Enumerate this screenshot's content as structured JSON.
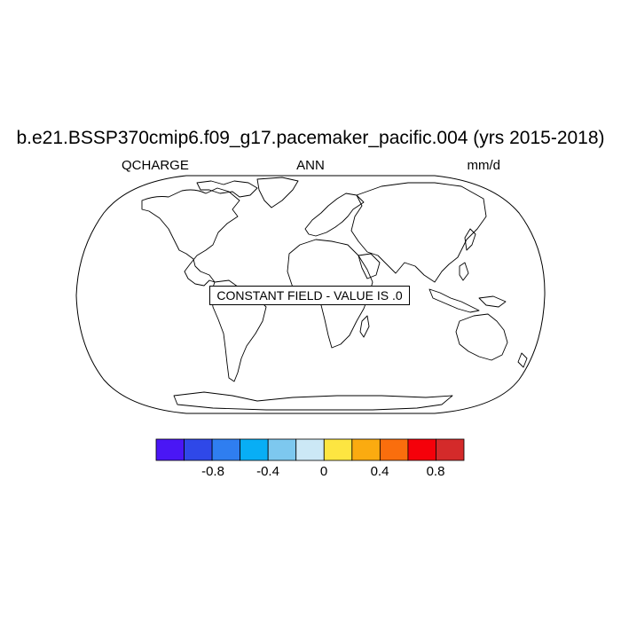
{
  "title": "b.e21.BSSP370cmip6.f09_g17.pacemaker_pacific.004 (yrs 2015-2018)",
  "subtitle": {
    "left": "QCHARGE",
    "center": "ANN",
    "right": "mm/d"
  },
  "map": {
    "projection": "Robinson",
    "annotation": "CONSTANT FIELD - VALUE IS .0"
  },
  "colorbar": {
    "colors": [
      "#4a16f5",
      "#2f48e8",
      "#2f7ef0",
      "#08aef5",
      "#7dc8ef",
      "#cce8f6",
      "#fde541",
      "#fbab10",
      "#fa6e0d",
      "#f5010a",
      "#d42a2a"
    ],
    "tick_labels": [
      "-0.8",
      "-0.4",
      "0",
      "0.4",
      "0.8"
    ]
  }
}
